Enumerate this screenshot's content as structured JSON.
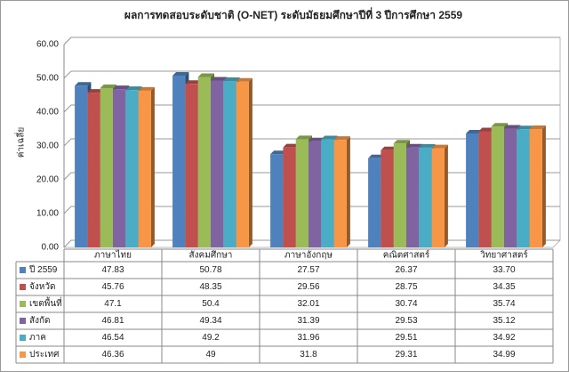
{
  "chart_data": {
    "type": "bar",
    "title": "ผลการทดสอบระดับชาติ (O-NET) ระดับมัธยมศึกษาปีที่ 3 ปีการศึกษา 2559",
    "y_label": "ค่าเฉลี่ย",
    "categories": [
      "ภาษาไทย",
      "สังคมศึกษา",
      "ภาษาอังกฤษ",
      "คณิตศาสตร์",
      "วิทยาศาสตร์"
    ],
    "series": [
      {
        "name": "ปี 2559",
        "color": "#4f81bd",
        "values": [
          47.83,
          50.78,
          27.57,
          26.37,
          33.7
        ],
        "value_labels": [
          "47.83",
          "50.78",
          "27.57",
          "26.37",
          "33.70"
        ]
      },
      {
        "name": "จังหวัด",
        "color": "#c0504d",
        "values": [
          45.76,
          48.35,
          29.56,
          28.75,
          34.35
        ]
      },
      {
        "name": "เขตพื้นที่",
        "color": "#9bbb59",
        "values": [
          47.1,
          50.4,
          32.01,
          30.74,
          35.74
        ]
      },
      {
        "name": "สังกัด",
        "color": "#8064a2",
        "values": [
          46.81,
          49.34,
          31.39,
          29.53,
          35.12
        ]
      },
      {
        "name": "ภาค",
        "color": "#4bacc6",
        "values": [
          46.54,
          49.2,
          31.96,
          29.51,
          34.92
        ]
      },
      {
        "name": "ประเทศ",
        "color": "#f79646",
        "values": [
          46.36,
          49,
          31.8,
          29.31,
          34.99
        ]
      }
    ],
    "ylim": [
      0,
      60
    ],
    "yticks": [
      {
        "value": 0,
        "label": "0.00"
      },
      {
        "value": 10,
        "label": "10.00"
      },
      {
        "value": 20,
        "label": "20.00"
      },
      {
        "value": 30,
        "label": "30.00"
      },
      {
        "value": 40,
        "label": "40.00"
      },
      {
        "value": 50,
        "label": "50.00"
      },
      {
        "value": 60,
        "label": "60.00"
      }
    ],
    "grid": true
  }
}
